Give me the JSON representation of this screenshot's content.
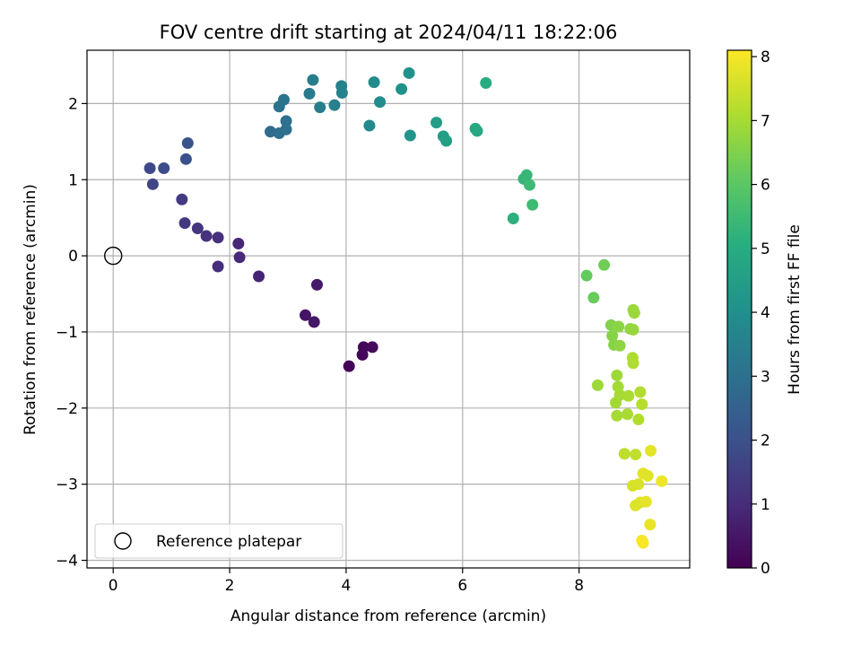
{
  "chart_data": {
    "type": "scatter",
    "title": "FOV centre drift starting at 2024/04/11 18:22:06",
    "xlabel": "Angular distance from reference (arcmin)",
    "ylabel": "Rotation from reference (arcmin)",
    "xlim": [
      -0.45,
      9.9
    ],
    "ylim": [
      -4.1,
      2.7
    ],
    "xticks": [
      0,
      2,
      4,
      6,
      8
    ],
    "xtick_labels": [
      "0",
      "2",
      "4",
      "6",
      "8"
    ],
    "yticks": [
      -4,
      -3,
      -2,
      -1,
      0,
      1,
      2
    ],
    "ytick_labels": [
      "−4",
      "−3",
      "−2",
      "−1",
      "0",
      "1",
      "2"
    ],
    "grid": true,
    "colormap": "viridis",
    "colorbar": {
      "label": "Hours from first FF file",
      "min": 0,
      "max": 8.1,
      "ticks": [
        0,
        1,
        2,
        3,
        4,
        5,
        6,
        7,
        8
      ],
      "tick_labels": [
        "0",
        "1",
        "2",
        "3",
        "4",
        "5",
        "6",
        "7",
        "8"
      ]
    },
    "reference_point": {
      "x": 0,
      "y": 0,
      "label": "Reference platepar"
    },
    "legend_position": "lower-left",
    "points": [
      {
        "x": 4.05,
        "y": -1.45,
        "hours": 0.05
      },
      {
        "x": 4.28,
        "y": -1.3,
        "hours": 0.1
      },
      {
        "x": 4.3,
        "y": -1.2,
        "hours": 0.15
      },
      {
        "x": 4.45,
        "y": -1.2,
        "hours": 0.2
      },
      {
        "x": 3.3,
        "y": -0.78,
        "hours": 0.45
      },
      {
        "x": 3.45,
        "y": -0.87,
        "hours": 0.5
      },
      {
        "x": 3.5,
        "y": -0.38,
        "hours": 0.55
      },
      {
        "x": 2.5,
        "y": -0.27,
        "hours": 0.8
      },
      {
        "x": 2.15,
        "y": 0.16,
        "hours": 0.9
      },
      {
        "x": 2.17,
        "y": -0.02,
        "hours": 0.95
      },
      {
        "x": 1.8,
        "y": -0.14,
        "hours": 1.05
      },
      {
        "x": 1.8,
        "y": 0.24,
        "hours": 1.1
      },
      {
        "x": 1.6,
        "y": 0.26,
        "hours": 1.15
      },
      {
        "x": 1.45,
        "y": 0.36,
        "hours": 1.2
      },
      {
        "x": 1.23,
        "y": 0.43,
        "hours": 1.3
      },
      {
        "x": 1.18,
        "y": 0.74,
        "hours": 1.4
      },
      {
        "x": 0.68,
        "y": 0.94,
        "hours": 1.7
      },
      {
        "x": 0.63,
        "y": 1.15,
        "hours": 1.8
      },
      {
        "x": 0.87,
        "y": 1.15,
        "hours": 1.9
      },
      {
        "x": 1.25,
        "y": 1.27,
        "hours": 2.0
      },
      {
        "x": 1.28,
        "y": 1.48,
        "hours": 2.1
      },
      {
        "x": 2.7,
        "y": 1.63,
        "hours": 2.8
      },
      {
        "x": 2.85,
        "y": 1.61,
        "hours": 2.9
      },
      {
        "x": 2.97,
        "y": 1.66,
        "hours": 3.0
      },
      {
        "x": 2.97,
        "y": 1.77,
        "hours": 3.0
      },
      {
        "x": 2.85,
        "y": 1.96,
        "hours": 3.05
      },
      {
        "x": 2.93,
        "y": 2.05,
        "hours": 3.1
      },
      {
        "x": 3.37,
        "y": 2.13,
        "hours": 3.3
      },
      {
        "x": 3.43,
        "y": 2.31,
        "hours": 3.35
      },
      {
        "x": 3.55,
        "y": 1.95,
        "hours": 3.4
      },
      {
        "x": 3.8,
        "y": 1.98,
        "hours": 3.5
      },
      {
        "x": 3.92,
        "y": 2.23,
        "hours": 3.55
      },
      {
        "x": 3.93,
        "y": 2.14,
        "hours": 3.6
      },
      {
        "x": 4.4,
        "y": 1.71,
        "hours": 3.8
      },
      {
        "x": 4.48,
        "y": 2.28,
        "hours": 3.85
      },
      {
        "x": 4.58,
        "y": 2.02,
        "hours": 3.9
      },
      {
        "x": 4.95,
        "y": 2.19,
        "hours": 4.05
      },
      {
        "x": 5.08,
        "y": 2.4,
        "hours": 4.1
      },
      {
        "x": 5.1,
        "y": 1.58,
        "hours": 4.15
      },
      {
        "x": 5.55,
        "y": 1.75,
        "hours": 4.45
      },
      {
        "x": 5.67,
        "y": 1.57,
        "hours": 4.5
      },
      {
        "x": 5.72,
        "y": 1.51,
        "hours": 4.55
      },
      {
        "x": 6.22,
        "y": 1.67,
        "hours": 4.8
      },
      {
        "x": 6.25,
        "y": 1.64,
        "hours": 4.85
      },
      {
        "x": 6.4,
        "y": 2.27,
        "hours": 4.95
      },
      {
        "x": 6.87,
        "y": 0.49,
        "hours": 5.15
      },
      {
        "x": 7.05,
        "y": 1.01,
        "hours": 5.3
      },
      {
        "x": 7.1,
        "y": 1.06,
        "hours": 5.35
      },
      {
        "x": 7.15,
        "y": 0.93,
        "hours": 5.45
      },
      {
        "x": 7.2,
        "y": 0.67,
        "hours": 5.5
      },
      {
        "x": 8.13,
        "y": -0.26,
        "hours": 6.15
      },
      {
        "x": 8.25,
        "y": -0.55,
        "hours": 6.2
      },
      {
        "x": 8.43,
        "y": -0.12,
        "hours": 6.3
      },
      {
        "x": 8.55,
        "y": -0.91,
        "hours": 6.55
      },
      {
        "x": 8.57,
        "y": -1.05,
        "hours": 6.6
      },
      {
        "x": 8.6,
        "y": -1.17,
        "hours": 6.6
      },
      {
        "x": 8.68,
        "y": -0.93,
        "hours": 6.65
      },
      {
        "x": 8.7,
        "y": -1.18,
        "hours": 6.7
      },
      {
        "x": 8.88,
        "y": -0.96,
        "hours": 6.75
      },
      {
        "x": 8.93,
        "y": -0.97,
        "hours": 6.8
      },
      {
        "x": 8.93,
        "y": -0.71,
        "hours": 6.85
      },
      {
        "x": 8.95,
        "y": -0.75,
        "hours": 6.85
      },
      {
        "x": 8.32,
        "y": -1.7,
        "hours": 6.9
      },
      {
        "x": 8.65,
        "y": -1.57,
        "hours": 6.9
      },
      {
        "x": 8.67,
        "y": -1.72,
        "hours": 6.95
      },
      {
        "x": 8.63,
        "y": -1.93,
        "hours": 6.95
      },
      {
        "x": 8.7,
        "y": -1.83,
        "hours": 7.0
      },
      {
        "x": 8.65,
        "y": -2.1,
        "hours": 7.0
      },
      {
        "x": 8.83,
        "y": -2.08,
        "hours": 7.05
      },
      {
        "x": 8.85,
        "y": -1.84,
        "hours": 7.05
      },
      {
        "x": 8.92,
        "y": -1.34,
        "hours": 7.1
      },
      {
        "x": 8.93,
        "y": -1.41,
        "hours": 7.1
      },
      {
        "x": 9.02,
        "y": -2.15,
        "hours": 7.15
      },
      {
        "x": 9.05,
        "y": -1.79,
        "hours": 7.15
      },
      {
        "x": 9.08,
        "y": -1.95,
        "hours": 7.2
      },
      {
        "x": 8.78,
        "y": -2.6,
        "hours": 7.3
      },
      {
        "x": 8.97,
        "y": -2.61,
        "hours": 7.35
      },
      {
        "x": 8.92,
        "y": -3.02,
        "hours": 7.6
      },
      {
        "x": 9.02,
        "y": -3.0,
        "hours": 7.65
      },
      {
        "x": 8.97,
        "y": -3.28,
        "hours": 7.7
      },
      {
        "x": 9.05,
        "y": -3.24,
        "hours": 7.7
      },
      {
        "x": 9.1,
        "y": -2.86,
        "hours": 7.75
      },
      {
        "x": 9.18,
        "y": -2.89,
        "hours": 7.75
      },
      {
        "x": 9.15,
        "y": -3.23,
        "hours": 7.8
      },
      {
        "x": 9.23,
        "y": -2.56,
        "hours": 7.8
      },
      {
        "x": 9.22,
        "y": -3.53,
        "hours": 7.85
      },
      {
        "x": 9.42,
        "y": -2.96,
        "hours": 7.9
      },
      {
        "x": 9.08,
        "y": -3.74,
        "hours": 8.0
      },
      {
        "x": 9.1,
        "y": -3.77,
        "hours": 8.05
      }
    ]
  }
}
